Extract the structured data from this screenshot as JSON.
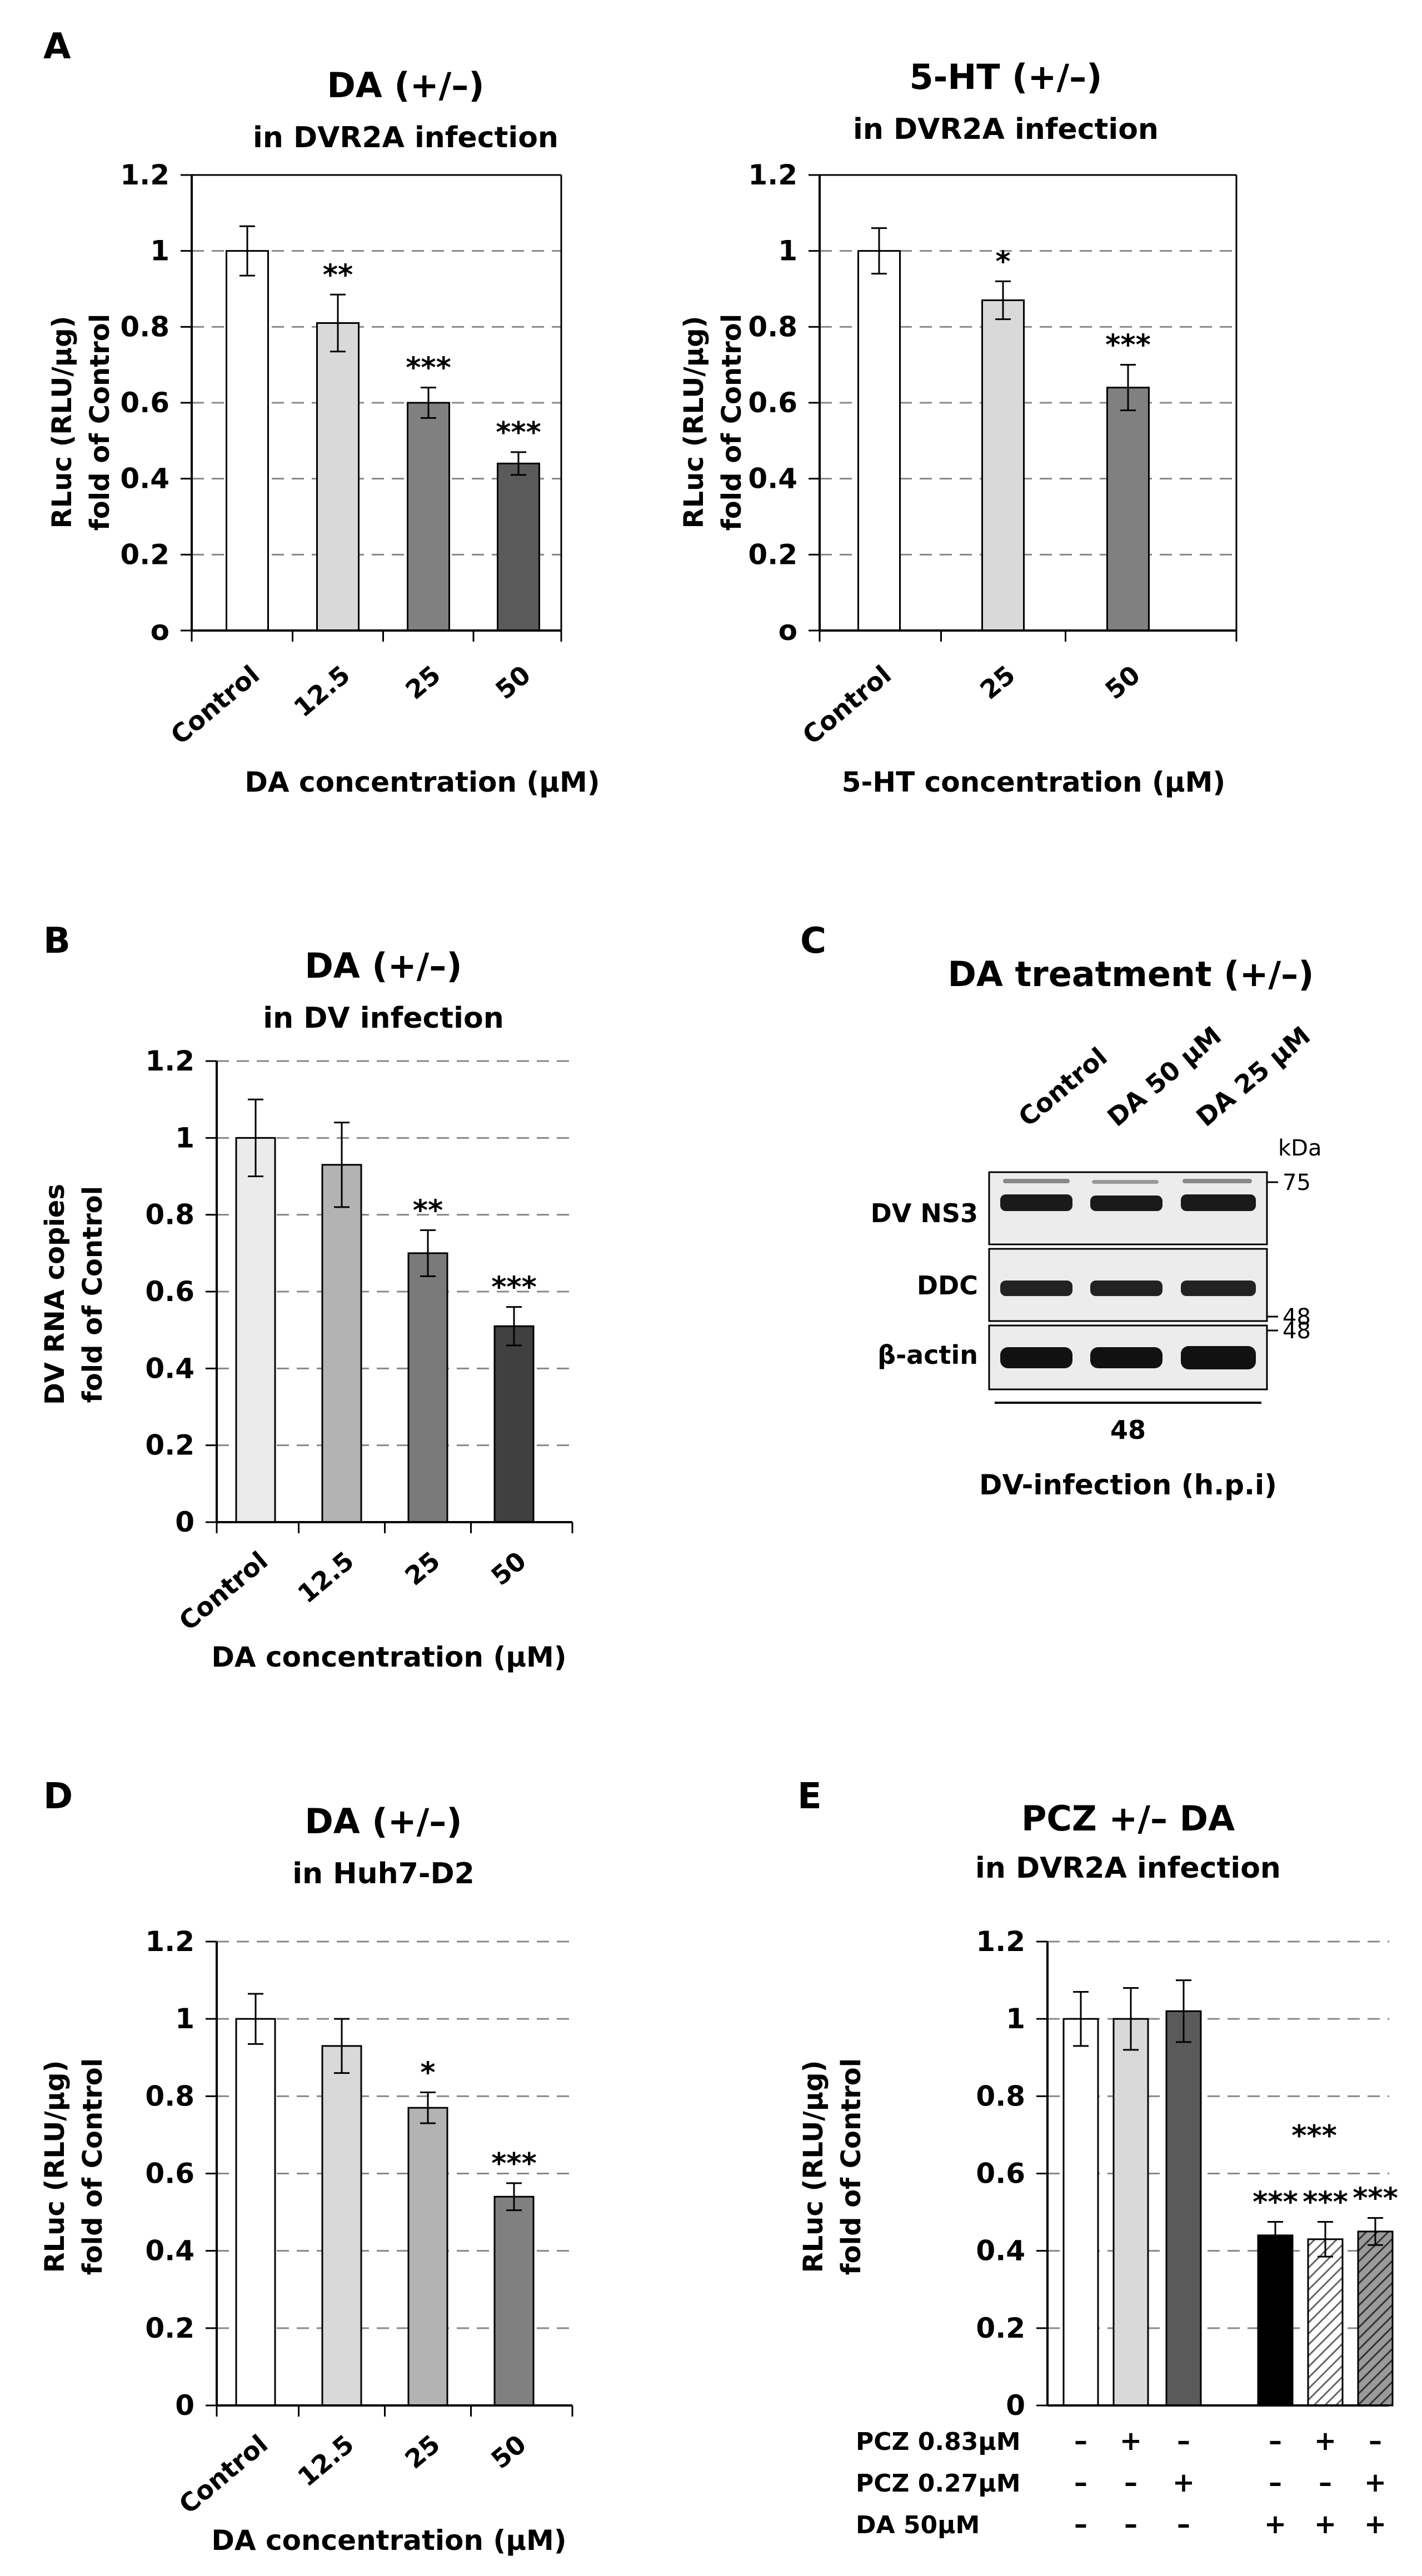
{
  "colors": {
    "white": "#ffffff",
    "light": "#d9d9d9",
    "lightB": "#ebebeb",
    "midLight": "#b3b3b3",
    "mid": "#808080",
    "mid2": "#7a7a7a",
    "dark": "#5a5a5a",
    "darker": "#404040",
    "black": "#000000",
    "grid": "#888888"
  },
  "chart_data": [
    {
      "panel": "A",
      "type": "bar",
      "title": "DA (+/–)",
      "subtitle": "in DVR2A infection",
      "xlabel": "DA concentration (μM)",
      "ylabel": [
        "RLuc (RLU/μg)",
        "fold of Control"
      ],
      "ylim": [
        0,
        1.2
      ],
      "ytick_values": [
        0,
        0.2,
        0.4,
        0.6,
        0.8,
        1,
        1.2
      ],
      "ytick_labels": [
        "o",
        "0.2",
        "0.4",
        "0.6",
        "0.8",
        "1",
        "1.2"
      ],
      "grid": true,
      "categories": [
        "Control",
        "12.5",
        "25",
        "50"
      ],
      "values": [
        1.0,
        0.81,
        0.6,
        0.44
      ],
      "errors": [
        0.065,
        0.075,
        0.04,
        0.03
      ],
      "significance": [
        "",
        "**",
        "***",
        "***"
      ],
      "bar_colors": [
        "white",
        "light",
        "mid",
        "dark"
      ]
    },
    {
      "panel": "",
      "type": "bar",
      "title": "5-HT (+/–)",
      "subtitle": "in DVR2A infection",
      "xlabel": "5-HT concentration (μM)",
      "ylabel": [
        "RLuc (RLU/μg)",
        "fold of Control"
      ],
      "ylim": [
        0,
        1.2
      ],
      "ytick_values": [
        0,
        0.2,
        0.4,
        0.6,
        0.8,
        1,
        1.2
      ],
      "ytick_labels": [
        "o",
        "0.2",
        "0.4",
        "0.6",
        "0.8",
        "1",
        "1.2"
      ],
      "grid": true,
      "categories": [
        "Control",
        "25",
        "50"
      ],
      "values": [
        1.0,
        0.87,
        0.64
      ],
      "errors": [
        0.06,
        0.05,
        0.06
      ],
      "significance": [
        "",
        "*",
        "***"
      ],
      "bar_colors": [
        "white",
        "light",
        "mid"
      ]
    },
    {
      "panel": "B",
      "type": "bar",
      "title": "DA (+/–)",
      "subtitle": "in DV infection",
      "xlabel": "DA concentration (μM)",
      "ylabel": [
        "DV RNA copies",
        "fold of Control"
      ],
      "ylim": [
        0,
        1.2
      ],
      "ytick_values": [
        0,
        0.2,
        0.4,
        0.6,
        0.8,
        1,
        1.2
      ],
      "ytick_labels": [
        "0",
        "0.2",
        "0.4",
        "0.6",
        "0.8",
        "1",
        "1.2"
      ],
      "grid": true,
      "categories": [
        "Control",
        "12.5",
        "25",
        "50"
      ],
      "values": [
        1.0,
        0.93,
        0.7,
        0.51
      ],
      "errors": [
        0.1,
        0.11,
        0.06,
        0.05
      ],
      "significance": [
        "",
        "",
        "**",
        "***"
      ],
      "bar_colors": [
        "lightB",
        "midLight",
        "mid2",
        "darker"
      ]
    },
    {
      "panel": "D",
      "type": "bar",
      "title": "DA (+/–)",
      "subtitle": "in Huh7-D2",
      "xlabel": "DA concentration (μM)",
      "ylabel": [
        "RLuc (RLU/μg)",
        "fold of Control"
      ],
      "ylim": [
        0,
        1.2
      ],
      "ytick_values": [
        0,
        0.2,
        0.4,
        0.6,
        0.8,
        1,
        1.2
      ],
      "ytick_labels": [
        "0",
        "0.2",
        "0.4",
        "0.6",
        "0.8",
        "1",
        "1.2"
      ],
      "grid": true,
      "categories": [
        "Control",
        "12.5",
        "25",
        "50"
      ],
      "values": [
        1.0,
        0.93,
        0.77,
        0.54
      ],
      "errors": [
        0.065,
        0.07,
        0.04,
        0.035
      ],
      "significance": [
        "",
        "",
        "*",
        "***"
      ],
      "bar_colors": [
        "white",
        "light",
        "midLight",
        "mid"
      ]
    },
    {
      "panel": "E",
      "type": "bar",
      "title": "PCZ +/– DA",
      "subtitle": "in DVR2A infection",
      "xlabel": "",
      "ylabel": [
        "RLuc (RLU/μg)",
        "fold of Control"
      ],
      "ylim": [
        0,
        1.2
      ],
      "ytick_values": [
        0,
        0.2,
        0.4,
        0.6,
        0.8,
        1,
        1.2
      ],
      "ytick_labels": [
        "0",
        "0.2",
        "0.4",
        "0.6",
        "0.8",
        "1",
        "1.2"
      ],
      "grid": true,
      "values": [
        1.0,
        1.0,
        1.02,
        0.44,
        0.43,
        0.45
      ],
      "errors": [
        0.07,
        0.08,
        0.08,
        0.035,
        0.045,
        0.035
      ],
      "significance": [
        "",
        "",
        "",
        "***",
        "***",
        "***"
      ],
      "group_label": "***",
      "bar_colors": [
        "white",
        "light",
        "dark",
        "black",
        "hatch-light",
        "hatch-dark"
      ],
      "conditions": [
        {
          "label": "PCZ 0.83μM",
          "marks": [
            "–",
            "+",
            "–",
            "–",
            "+",
            "–"
          ]
        },
        {
          "label": "PCZ 0.27μM",
          "marks": [
            "–",
            "–",
            "+",
            "–",
            "–",
            "+"
          ]
        },
        {
          "label": "DA   50μM",
          "marks": [
            "–",
            "–",
            "–",
            "+",
            "+",
            "+"
          ]
        }
      ]
    }
  ],
  "blot": {
    "panel": "C",
    "title": "DA treatment (+/–)",
    "lanes": [
      "Control",
      "DA 50 μM",
      "DA 25 μM"
    ],
    "kda_label": "kDa",
    "bands": [
      {
        "label": "DV NS3",
        "marker": "75"
      },
      {
        "label": "DDC",
        "marker": "48"
      },
      {
        "label": "β-actin",
        "marker": "48"
      }
    ],
    "time_label": "48",
    "xlabel": "DV-infection (h.p.i)"
  }
}
